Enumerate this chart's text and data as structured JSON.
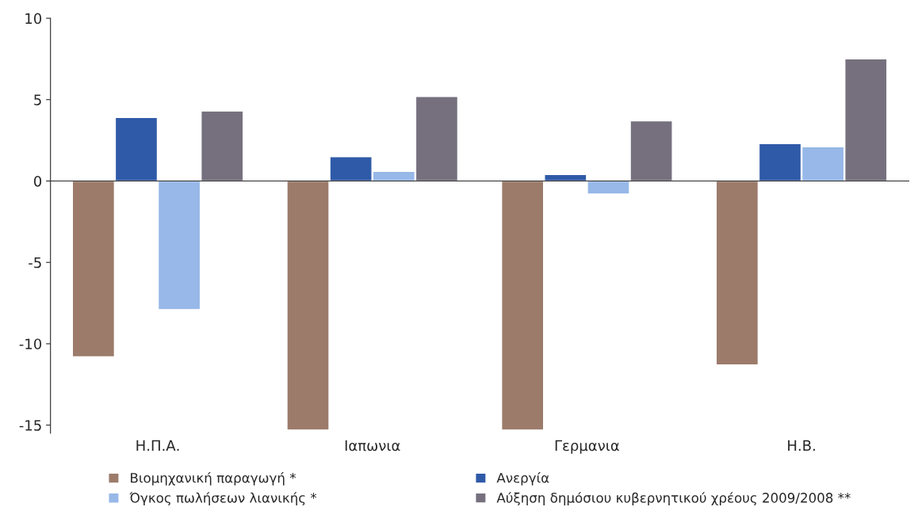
{
  "chart_data": {
    "type": "bar",
    "categories": [
      "Η.Π.Α.",
      "Ιαπωνια",
      "Γερμανια",
      "Η.Β."
    ],
    "series": [
      {
        "name": "Βιομηχανική παραγωγή *",
        "color": "#9c7b6b",
        "values": [
          -10.8,
          -15.3,
          -15.3,
          -11.3
        ]
      },
      {
        "name": "Ανεργία",
        "color": "#2f5aa8",
        "values": [
          3.9,
          1.5,
          0.4,
          2.3
        ]
      },
      {
        "name": "Όγκος πωλήσεων λιανικής *",
        "color": "#97b8e8",
        "values": [
          -7.9,
          0.6,
          -0.8,
          2.1
        ]
      },
      {
        "name": "Αύξηση δημόσιου κυβερνητικού χρέους 2009/2008 **",
        "color": "#76707e",
        "values": [
          4.3,
          5.2,
          3.7,
          7.5
        ]
      }
    ],
    "ylim": [
      -15.5,
      10
    ],
    "yticks": [
      -15,
      -10,
      -5,
      0,
      5,
      10
    ],
    "legend": "bottom"
  }
}
